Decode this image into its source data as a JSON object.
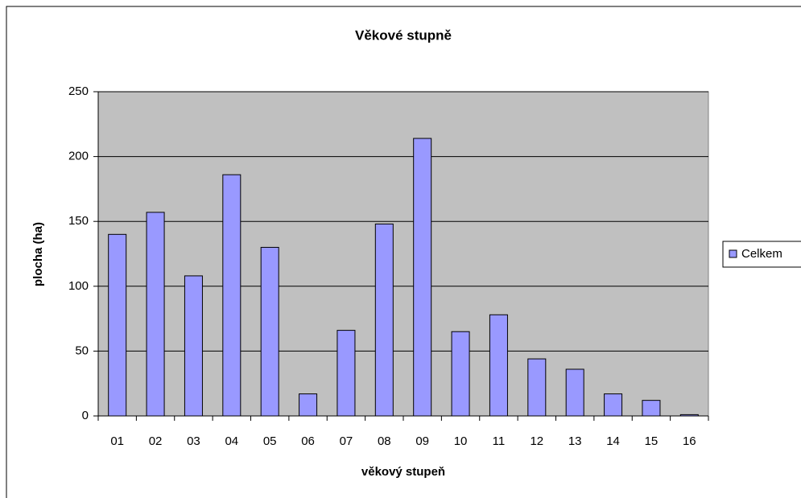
{
  "chart_data": {
    "type": "bar",
    "title": "Věkové stupně",
    "x_label": "věkový stupeň",
    "y_label": "plocha (ha)",
    "categories": [
      "01",
      "02",
      "03",
      "04",
      "05",
      "06",
      "07",
      "08",
      "09",
      "10",
      "11",
      "12",
      "13",
      "14",
      "15",
      "16"
    ],
    "series": [
      {
        "name": "Celkem",
        "color": "#9999ff",
        "values": [
          140,
          157,
          108,
          186,
          130,
          17,
          66,
          148,
          214,
          65,
          78,
          44,
          36,
          17,
          12,
          1
        ]
      }
    ],
    "ylim": [
      0,
      250
    ],
    "yticks": [
      0,
      50,
      100,
      150,
      200,
      250
    ],
    "grid": true,
    "legend": "right"
  }
}
